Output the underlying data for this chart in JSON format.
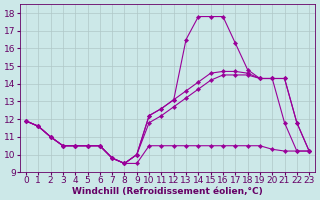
{
  "xlabel": "Windchill (Refroidissement éolien,°C)",
  "background_color": "#cce8e8",
  "grid_color": "#b0c8c8",
  "line_color": "#990099",
  "xlim": [
    -0.5,
    23.5
  ],
  "ylim": [
    9,
    18.5
  ],
  "xticks": [
    0,
    1,
    2,
    3,
    4,
    5,
    6,
    7,
    8,
    9,
    10,
    11,
    12,
    13,
    14,
    15,
    16,
    17,
    18,
    19,
    20,
    21,
    22,
    23
  ],
  "yticks": [
    9,
    10,
    11,
    12,
    13,
    14,
    15,
    16,
    17,
    18
  ],
  "line1_x": [
    0,
    1,
    2,
    3,
    4,
    5,
    6,
    7,
    8,
    9,
    10,
    11,
    12,
    13,
    14,
    15,
    16,
    17,
    18,
    19,
    20,
    21,
    22,
    23
  ],
  "line1_y": [
    11.9,
    11.6,
    11.0,
    10.5,
    10.5,
    10.5,
    10.5,
    9.8,
    9.5,
    9.5,
    10.5,
    10.5,
    10.5,
    10.5,
    10.5,
    10.5,
    10.5,
    10.5,
    10.5,
    10.5,
    10.3,
    10.2,
    10.2,
    10.2
  ],
  "line2_x": [
    0,
    1,
    2,
    3,
    4,
    5,
    6,
    7,
    8,
    9,
    10,
    11,
    12,
    13,
    14,
    15,
    16,
    17,
    18,
    19,
    20,
    21,
    22,
    23
  ],
  "line2_y": [
    11.9,
    11.6,
    11.0,
    10.5,
    10.5,
    10.5,
    10.5,
    9.8,
    9.5,
    10.0,
    11.8,
    12.2,
    12.7,
    13.2,
    13.7,
    14.2,
    14.5,
    14.5,
    14.5,
    14.3,
    14.3,
    14.3,
    11.8,
    10.2
  ],
  "line3_x": [
    0,
    1,
    2,
    3,
    4,
    5,
    6,
    7,
    8,
    9,
    10,
    11,
    12,
    13,
    14,
    15,
    16,
    17,
    18,
    19,
    20,
    21,
    22,
    23
  ],
  "line3_y": [
    11.9,
    11.6,
    11.0,
    10.5,
    10.5,
    10.5,
    10.5,
    9.8,
    9.5,
    10.0,
    12.2,
    12.6,
    13.1,
    13.6,
    14.1,
    14.6,
    14.7,
    14.7,
    14.6,
    14.3,
    14.3,
    14.3,
    11.8,
    10.2
  ],
  "line4_x": [
    0,
    1,
    2,
    3,
    4,
    5,
    6,
    7,
    8,
    9,
    10,
    11,
    12,
    13,
    14,
    15,
    16,
    17,
    18,
    19,
    20,
    21,
    22,
    23
  ],
  "line4_y": [
    11.9,
    11.6,
    11.0,
    10.5,
    10.5,
    10.5,
    10.5,
    9.8,
    9.5,
    10.0,
    12.2,
    12.6,
    13.1,
    16.5,
    17.8,
    17.8,
    17.8,
    16.3,
    14.8,
    14.3,
    14.3,
    11.8,
    10.2,
    10.2
  ],
  "xlabel_fontsize": 6.5,
  "tick_fontsize": 6.5
}
